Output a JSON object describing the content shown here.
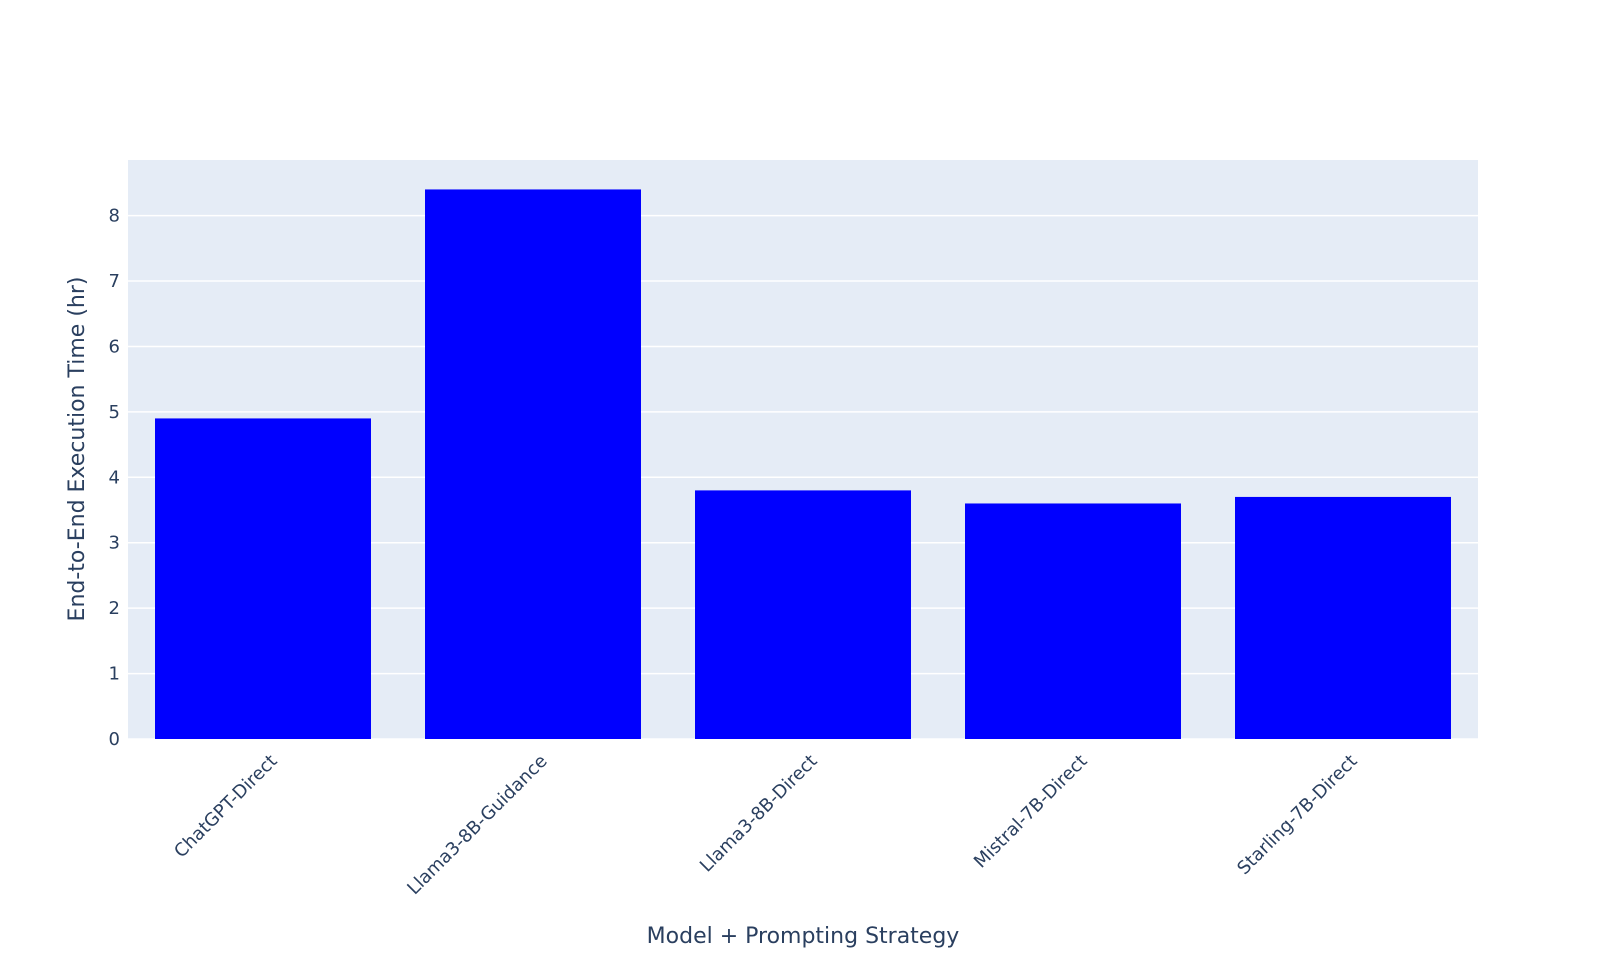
{
  "chart_data": {
    "type": "bar",
    "title": "",
    "xlabel": "Model + Prompting Strategy",
    "ylabel": "End-to-End Execution Time (hr)",
    "categories": [
      "ChatGPT-Direct",
      "Llama3-8B-Guidance",
      "Llama3-8B-Direct",
      "Mistral-7B-Direct",
      "Starling-7B-Direct"
    ],
    "values": [
      4.9,
      8.4,
      3.8,
      3.6,
      3.7
    ],
    "ylim": [
      0,
      8.85
    ],
    "yticks": [
      0,
      1,
      2,
      3,
      4,
      5,
      6,
      7,
      8
    ],
    "grid": true,
    "legend": "none",
    "colors": {
      "bar": "#0000ff",
      "plot_background": "#e5ecf6",
      "gridline": "#ffffff",
      "text": "#2a3f5f"
    }
  }
}
